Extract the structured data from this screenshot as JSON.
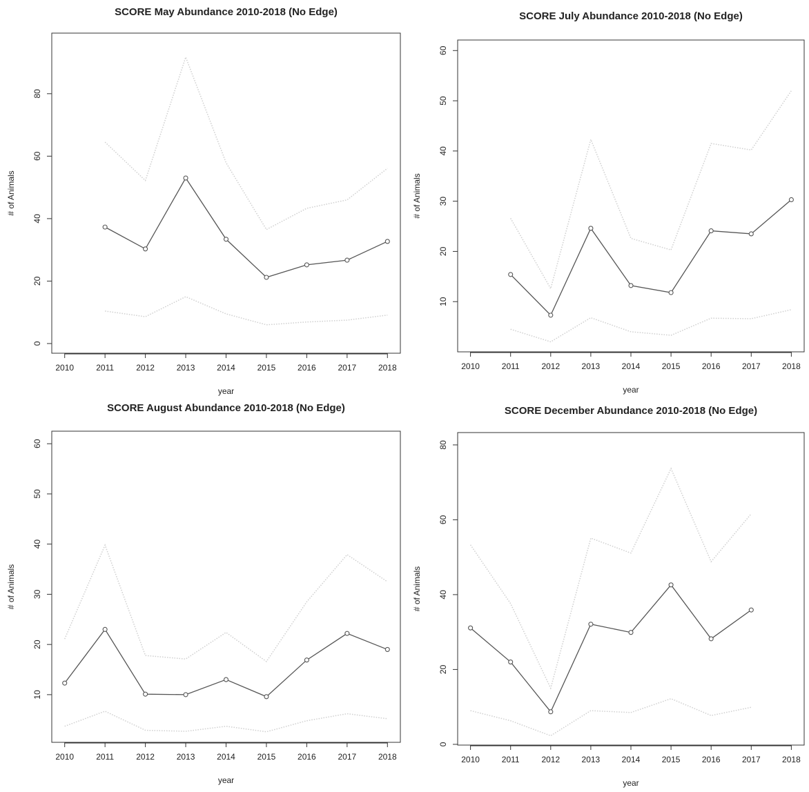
{
  "chart_data": [
    {
      "type": "line",
      "title": "SCORE May Abundance 2010-2018 (No Edge)",
      "x_label": "year",
      "y_label": "# of Animals",
      "x": [
        2010,
        2011,
        2012,
        2013,
        2014,
        2015,
        2016,
        2017,
        2018
      ],
      "xlim": [
        2009.68,
        2018.32
      ],
      "xticks": [
        2010,
        2011,
        2012,
        2013,
        2014,
        2015,
        2016,
        2017,
        2018
      ],
      "ylim": [
        -3.1,
        99.4
      ],
      "yticks": [
        0,
        20,
        40,
        60,
        80
      ],
      "series": [
        {
          "color": "#555555",
          "line_style": "solid",
          "markers": true,
          "values": [
            null,
            37.3,
            30.3,
            53.0,
            33.4,
            21.2,
            25.2,
            26.7,
            32.7
          ]
        },
        {
          "color": "#cfcfcf",
          "line_style": "dotted",
          "markers": false,
          "values": [
            null,
            64.5,
            52.2,
            91.7,
            57.9,
            36.5,
            43.3,
            46.0,
            56.1
          ]
        },
        {
          "color": "#cfcfcf",
          "line_style": "dotted",
          "markers": false,
          "values": [
            null,
            10.4,
            8.6,
            15.0,
            9.5,
            6.0,
            6.9,
            7.5,
            9.1
          ]
        }
      ]
    },
    {
      "type": "line",
      "title": "SCORE July Abundance 2010-2018 (No Edge)",
      "x_label": "year",
      "y_label": "# of Animals",
      "x": [
        2010,
        2011,
        2012,
        2013,
        2014,
        2015,
        2016,
        2017,
        2018
      ],
      "xlim": [
        2009.68,
        2018.32
      ],
      "xticks": [
        2010,
        2011,
        2012,
        2013,
        2014,
        2015,
        2016,
        2017,
        2018
      ],
      "ylim": [
        0,
        62.1
      ],
      "yticks": [
        10,
        20,
        30,
        40,
        50,
        60
      ],
      "series": [
        {
          "color": "#555555",
          "line_style": "solid",
          "markers": true,
          "values": [
            null,
            15.4,
            7.3,
            24.6,
            13.2,
            11.8,
            24.1,
            23.5,
            30.3
          ]
        },
        {
          "color": "#cfcfcf",
          "line_style": "dotted",
          "markers": false,
          "values": [
            null,
            26.6,
            12.6,
            42.3,
            22.6,
            20.3,
            41.5,
            40.2,
            52.0
          ]
        },
        {
          "color": "#cfcfcf",
          "line_style": "dotted",
          "markers": false,
          "values": [
            null,
            4.5,
            2.0,
            6.8,
            4.0,
            3.3,
            6.7,
            6.6,
            8.4
          ]
        }
      ]
    },
    {
      "type": "line",
      "title": "SCORE August Abundance 2010-2018 (No Edge)",
      "x_label": "year",
      "y_label": "# of Animals",
      "x": [
        2010,
        2011,
        2012,
        2013,
        2014,
        2015,
        2016,
        2017,
        2018
      ],
      "xlim": [
        2009.68,
        2018.32
      ],
      "xticks": [
        2010,
        2011,
        2012,
        2013,
        2014,
        2015,
        2016,
        2017,
        2018
      ],
      "ylim": [
        0.5,
        62.5
      ],
      "yticks": [
        10,
        20,
        30,
        40,
        50,
        60
      ],
      "series": [
        {
          "color": "#555555",
          "line_style": "solid",
          "markers": true,
          "values": [
            12.3,
            23.0,
            10.1,
            10.0,
            13.0,
            9.6,
            16.9,
            22.2,
            19.0
          ]
        },
        {
          "color": "#cfcfcf",
          "line_style": "dotted",
          "markers": false,
          "values": [
            21.1,
            39.8,
            17.8,
            17.1,
            22.4,
            16.6,
            28.5,
            37.9,
            32.5
          ]
        },
        {
          "color": "#cfcfcf",
          "line_style": "dotted",
          "markers": false,
          "values": [
            3.7,
            6.7,
            2.9,
            2.7,
            3.7,
            2.6,
            4.8,
            6.2,
            5.2
          ]
        }
      ]
    },
    {
      "type": "line",
      "title": "SCORE December Abundance 2010-2018 (No Edge)",
      "x_label": "year",
      "y_label": "# of Animals",
      "x": [
        2010,
        2011,
        2012,
        2013,
        2014,
        2015,
        2016,
        2017,
        2018
      ],
      "xlim": [
        2009.68,
        2018.32
      ],
      "xticks": [
        2010,
        2011,
        2012,
        2013,
        2014,
        2015,
        2016,
        2017,
        2018
      ],
      "ylim": [
        -0.2,
        83.3
      ],
      "yticks": [
        0,
        20,
        40,
        60,
        80
      ],
      "series": [
        {
          "color": "#555555",
          "line_style": "solid",
          "markers": true,
          "values": [
            31.1,
            22.0,
            8.7,
            32.1,
            29.9,
            42.6,
            28.2,
            35.9,
            null
          ]
        },
        {
          "color": "#cfcfcf",
          "line_style": "dotted",
          "markers": false,
          "values": [
            53.3,
            37.6,
            15.0,
            55.1,
            51.1,
            73.7,
            48.8,
            61.6,
            null
          ]
        },
        {
          "color": "#cfcfcf",
          "line_style": "dotted",
          "markers": false,
          "values": [
            9.0,
            6.3,
            2.3,
            9.0,
            8.5,
            12.2,
            7.7,
            9.9,
            null
          ]
        }
      ]
    }
  ]
}
